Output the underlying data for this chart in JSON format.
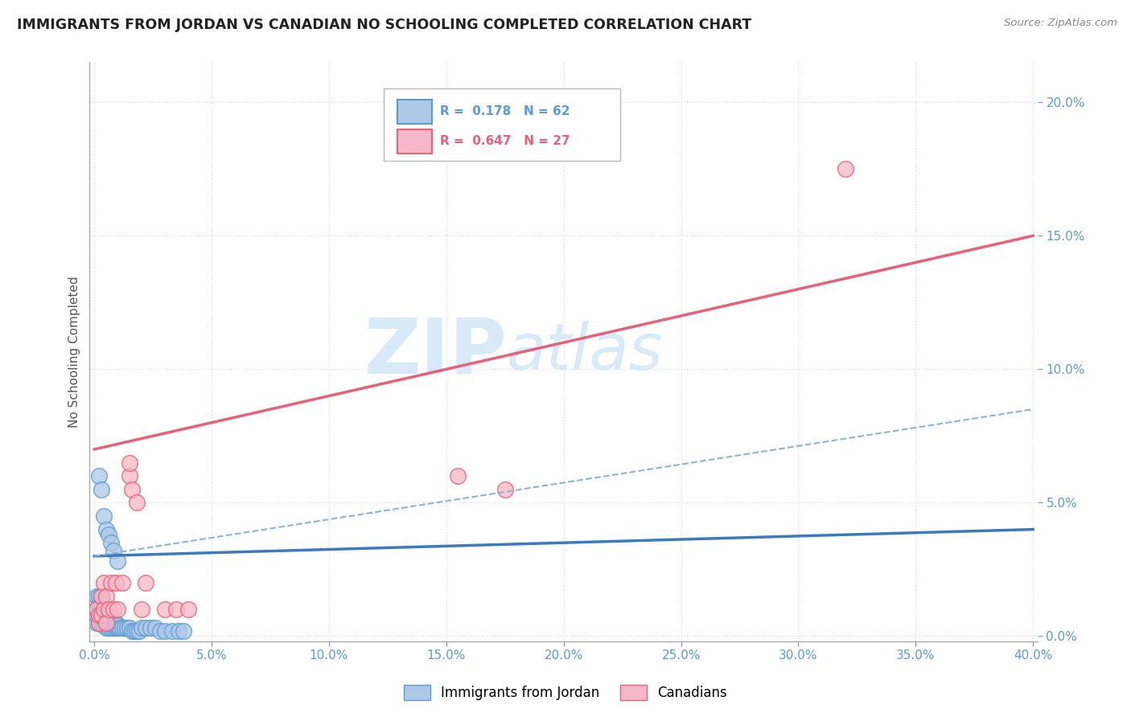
{
  "title": "IMMIGRANTS FROM JORDAN VS CANADIAN NO SCHOOLING COMPLETED CORRELATION CHART",
  "source": "Source: ZipAtlas.com",
  "ylabel_label": "No Schooling Completed",
  "legend_label1": "Immigrants from Jordan",
  "legend_label2": "Canadians",
  "R1": 0.178,
  "N1": 62,
  "R2": 0.647,
  "N2": 27,
  "xlim": [
    -0.002,
    0.402
  ],
  "ylim": [
    -0.002,
    0.215
  ],
  "xticks": [
    0.0,
    0.05,
    0.1,
    0.15,
    0.2,
    0.25,
    0.3,
    0.35,
    0.4
  ],
  "yticks": [
    0.0,
    0.05,
    0.1,
    0.15,
    0.2
  ],
  "color_blue_fill": "#aec8e8",
  "color_blue_edge": "#5b9bd5",
  "color_pink_fill": "#f5b8c8",
  "color_pink_edge": "#e8607a",
  "color_blue_line": "#3a7abf",
  "color_pink_line": "#e8607a",
  "color_dashed": "#8ab4d8",
  "blue_scatter_x": [
    0.001,
    0.001,
    0.001,
    0.001,
    0.002,
    0.002,
    0.002,
    0.002,
    0.002,
    0.003,
    0.003,
    0.003,
    0.003,
    0.003,
    0.003,
    0.004,
    0.004,
    0.004,
    0.004,
    0.004,
    0.005,
    0.005,
    0.005,
    0.005,
    0.006,
    0.006,
    0.006,
    0.007,
    0.007,
    0.007,
    0.008,
    0.008,
    0.009,
    0.009,
    0.01,
    0.01,
    0.011,
    0.012,
    0.013,
    0.014,
    0.015,
    0.016,
    0.017,
    0.018,
    0.019,
    0.02,
    0.022,
    0.024,
    0.026,
    0.028,
    0.03,
    0.033,
    0.036,
    0.038,
    0.002,
    0.003,
    0.004,
    0.005,
    0.006,
    0.007,
    0.008,
    0.01
  ],
  "blue_scatter_y": [
    0.005,
    0.008,
    0.01,
    0.015,
    0.005,
    0.008,
    0.01,
    0.012,
    0.015,
    0.005,
    0.006,
    0.008,
    0.01,
    0.012,
    0.015,
    0.004,
    0.006,
    0.008,
    0.01,
    0.012,
    0.003,
    0.005,
    0.007,
    0.01,
    0.003,
    0.005,
    0.008,
    0.003,
    0.005,
    0.007,
    0.003,
    0.004,
    0.003,
    0.005,
    0.003,
    0.004,
    0.003,
    0.003,
    0.003,
    0.003,
    0.003,
    0.002,
    0.002,
    0.002,
    0.002,
    0.003,
    0.003,
    0.003,
    0.003,
    0.002,
    0.002,
    0.002,
    0.002,
    0.002,
    0.06,
    0.055,
    0.045,
    0.04,
    0.038,
    0.035,
    0.032,
    0.028
  ],
  "pink_scatter_x": [
    0.001,
    0.002,
    0.002,
    0.003,
    0.003,
    0.004,
    0.004,
    0.005,
    0.005,
    0.006,
    0.007,
    0.008,
    0.009,
    0.01,
    0.012,
    0.015,
    0.015,
    0.016,
    0.018,
    0.02,
    0.022,
    0.03,
    0.035,
    0.04,
    0.155,
    0.175,
    0.32
  ],
  "pink_scatter_y": [
    0.01,
    0.005,
    0.008,
    0.008,
    0.015,
    0.01,
    0.02,
    0.005,
    0.015,
    0.01,
    0.02,
    0.01,
    0.02,
    0.01,
    0.02,
    0.06,
    0.065,
    0.055,
    0.05,
    0.01,
    0.02,
    0.01,
    0.01,
    0.01,
    0.06,
    0.055,
    0.175
  ],
  "blue_trend_x": [
    0.0,
    0.4
  ],
  "blue_trend_y": [
    0.03,
    0.04
  ],
  "pink_trend_x": [
    0.0,
    0.4
  ],
  "pink_trend_y": [
    0.07,
    0.15
  ],
  "dashed_trend_x": [
    0.0,
    0.4
  ],
  "dashed_trend_y": [
    0.03,
    0.085
  ],
  "watermark_zip": "ZIP",
  "watermark_atlas": "atlas",
  "watermark_color": "#d8eaf8",
  "background_color": "#ffffff",
  "grid_color": "#dddddd",
  "tick_color": "#5b9bd5",
  "title_color": "#222222",
  "source_color": "#888888",
  "ylabel_color": "#555555"
}
